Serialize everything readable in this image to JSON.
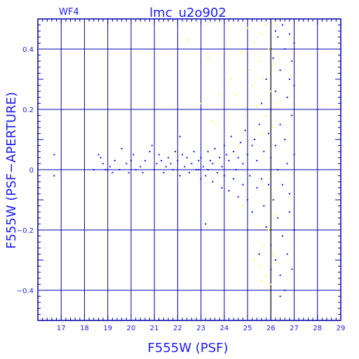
{
  "chart_data": {
    "type": "scatter",
    "title": "lmc_u2o902",
    "corner_label": "WF4",
    "xlabel": "F555W (PSF)",
    "ylabel": "F555W (PSF−APERTURE)",
    "xlim": [
      16.0,
      29.0
    ],
    "ylim": [
      -0.5,
      0.5
    ],
    "x_ticks": [
      17,
      18,
      19,
      20,
      21,
      22,
      23,
      24,
      25,
      26,
      27,
      28,
      29
    ],
    "y_ticks": [
      -0.4,
      -0.2,
      0,
      0.2,
      0.4
    ],
    "y_tick_labels": [
      "−0.4",
      "−0.2",
      "0",
      "0.2",
      "0.4"
    ],
    "grid": true,
    "reference_line_x": 26.0,
    "colors": {
      "axis": "#0000aa",
      "text": "#1a1aff",
      "stars": "#1010ee",
      "rejected": "#ffff33"
    },
    "series": [
      {
        "color": "#1010ee",
        "points": [
          [
            16.7,
            0.05
          ],
          [
            16.7,
            -0.02
          ],
          [
            18.4,
            0.0
          ],
          [
            18.6,
            0.05
          ],
          [
            18.7,
            0.04
          ],
          [
            18.8,
            0.02
          ],
          [
            18.9,
            0.0
          ],
          [
            19.0,
            0.0
          ],
          [
            19.1,
            0.01
          ],
          [
            19.2,
            -0.01
          ],
          [
            19.3,
            0.03
          ],
          [
            19.5,
            0.0
          ],
          [
            19.6,
            0.07
          ],
          [
            19.8,
            0.02
          ],
          [
            19.9,
            -0.01
          ],
          [
            20.0,
            0.03
          ],
          [
            20.1,
            0.05
          ],
          [
            20.2,
            0.0
          ],
          [
            20.4,
            0.01
          ],
          [
            20.5,
            -0.01
          ],
          [
            20.6,
            0.03
          ],
          [
            20.8,
            0.06
          ],
          [
            20.9,
            0.08
          ],
          [
            21.0,
            0.0
          ],
          [
            21.1,
            0.02
          ],
          [
            21.2,
            0.05
          ],
          [
            21.3,
            0.03
          ],
          [
            21.4,
            -0.01
          ],
          [
            21.5,
            0.01
          ],
          [
            21.6,
            0.04
          ],
          [
            21.7,
            0.02
          ],
          [
            21.8,
            0.0
          ],
          [
            21.9,
            0.06
          ],
          [
            22.0,
            0.03
          ],
          [
            22.1,
            0.11
          ],
          [
            22.1,
            -0.02
          ],
          [
            22.2,
            0.05
          ],
          [
            22.3,
            0.01
          ],
          [
            22.4,
            0.04
          ],
          [
            22.5,
            -0.01
          ],
          [
            22.6,
            0.02
          ],
          [
            22.7,
            0.06
          ],
          [
            22.8,
            0.0
          ],
          [
            22.9,
            0.03
          ],
          [
            23.0,
            -0.03
          ],
          [
            23.0,
            0.04
          ],
          [
            23.1,
            0.01
          ],
          [
            23.2,
            -0.02
          ],
          [
            23.3,
            0.06
          ],
          [
            23.3,
            0.0
          ],
          [
            23.4,
            0.03
          ],
          [
            23.5,
            -0.04
          ],
          [
            23.5,
            0.02
          ],
          [
            23.6,
            0.07
          ],
          [
            23.7,
            -0.01
          ],
          [
            23.8,
            0.04
          ],
          [
            23.9,
            -0.06
          ],
          [
            23.9,
            0.01
          ],
          [
            24.0,
            0.08
          ],
          [
            24.0,
            -0.02
          ],
          [
            24.1,
            0.05
          ],
          [
            24.2,
            -0.07
          ],
          [
            24.2,
            0.03
          ],
          [
            24.3,
            0.11
          ],
          [
            24.4,
            -0.03
          ],
          [
            24.4,
            0.06
          ],
          [
            24.5,
            0.0
          ],
          [
            24.6,
            -0.09
          ],
          [
            24.6,
            0.04
          ],
          [
            24.7,
            0.09
          ],
          [
            24.8,
            -0.05
          ],
          [
            24.8,
            0.02
          ],
          [
            24.9,
            0.13
          ],
          [
            25.0,
            -0.1
          ],
          [
            25.0,
            0.05
          ],
          [
            25.1,
            -0.02
          ],
          [
            25.2,
            0.08
          ],
          [
            25.2,
            -0.14
          ],
          [
            25.3,
            0.1
          ],
          [
            25.4,
            -0.06
          ],
          [
            25.4,
            0.03
          ],
          [
            25.5,
            -0.28
          ],
          [
            25.5,
            0.15
          ],
          [
            25.6,
            -0.03
          ],
          [
            25.6,
            0.22
          ],
          [
            25.7,
            -0.12
          ],
          [
            25.7,
            0.06
          ],
          [
            25.8,
            0.3
          ],
          [
            25.8,
            -0.19
          ],
          [
            25.9,
            0.12
          ],
          [
            25.9,
            -0.05
          ],
          [
            26.0,
            0.2
          ],
          [
            26.0,
            -0.25
          ],
          [
            26.0,
            0.04
          ],
          [
            26.1,
            0.37
          ],
          [
            26.1,
            -0.1
          ],
          [
            26.2,
            0.26
          ],
          [
            26.2,
            -0.3
          ],
          [
            26.2,
            0.08
          ],
          [
            26.3,
            0.44
          ],
          [
            26.3,
            -0.16
          ],
          [
            26.3,
            0.0
          ],
          [
            26.4,
            0.33
          ],
          [
            26.4,
            -0.35
          ],
          [
            26.4,
            0.15
          ],
          [
            26.5,
            0.48
          ],
          [
            26.5,
            -0.22
          ],
          [
            26.5,
            -0.05
          ],
          [
            26.6,
            0.4
          ],
          [
            26.6,
            -0.4
          ],
          [
            26.6,
            0.1
          ],
          [
            26.7,
            0.24
          ],
          [
            26.7,
            -0.28
          ],
          [
            26.7,
            0.02
          ],
          [
            26.8,
            0.45
          ],
          [
            26.8,
            -0.14
          ],
          [
            26.8,
            0.3
          ],
          [
            26.9,
            -0.33
          ],
          [
            26.9,
            0.18
          ],
          [
            27.0,
            0.42
          ],
          [
            27.0,
            -0.2
          ],
          [
            27.0,
            0.05
          ],
          [
            27.0,
            0.28
          ],
          [
            26.8,
            -0.08
          ],
          [
            26.9,
            0.36
          ],
          [
            26.4,
            -0.42
          ],
          [
            26.2,
            0.46
          ],
          [
            26.0,
            -0.33
          ],
          [
            23.2,
            -0.18
          ],
          [
            22.9,
            0.0
          ]
        ]
      },
      {
        "color": "#ffff33",
        "points": [
          [
            22.4,
            0.43
          ],
          [
            23.0,
            0.22
          ],
          [
            23.3,
            0.37
          ],
          [
            23.5,
            0.16
          ],
          [
            24.1,
            0.41
          ],
          [
            24.3,
            0.3
          ],
          [
            24.5,
            0.25
          ],
          [
            24.7,
            0.39
          ],
          [
            24.9,
            0.18
          ],
          [
            25.0,
            0.47
          ],
          [
            25.1,
            0.33
          ],
          [
            25.2,
            0.28
          ],
          [
            25.3,
            0.42
          ],
          [
            25.4,
            0.21
          ],
          [
            25.5,
            0.36
          ],
          [
            25.6,
            0.45
          ],
          [
            25.6,
            0.12
          ],
          [
            25.7,
            0.3
          ],
          [
            25.8,
            0.48
          ],
          [
            25.8,
            0.18
          ],
          [
            25.9,
            0.4
          ],
          [
            26.0,
            0.26
          ],
          [
            26.1,
            0.49
          ],
          [
            26.1,
            0.14
          ],
          [
            26.2,
            0.35
          ],
          [
            25.5,
            -0.32
          ],
          [
            25.6,
            -0.37
          ],
          [
            25.7,
            -0.25
          ],
          [
            25.8,
            -0.35
          ],
          [
            25.9,
            -0.2
          ],
          [
            26.0,
            -0.38
          ],
          [
            26.1,
            -0.28
          ],
          [
            26.2,
            -0.15
          ],
          [
            26.3,
            -0.31
          ],
          [
            24.8,
            -0.12
          ],
          [
            24.6,
            0.08
          ],
          [
            25.3,
            -0.3
          ],
          [
            26.4,
            0.5
          ],
          [
            26.3,
            0.22
          ],
          [
            23.8,
            0.25
          ]
        ]
      }
    ]
  }
}
